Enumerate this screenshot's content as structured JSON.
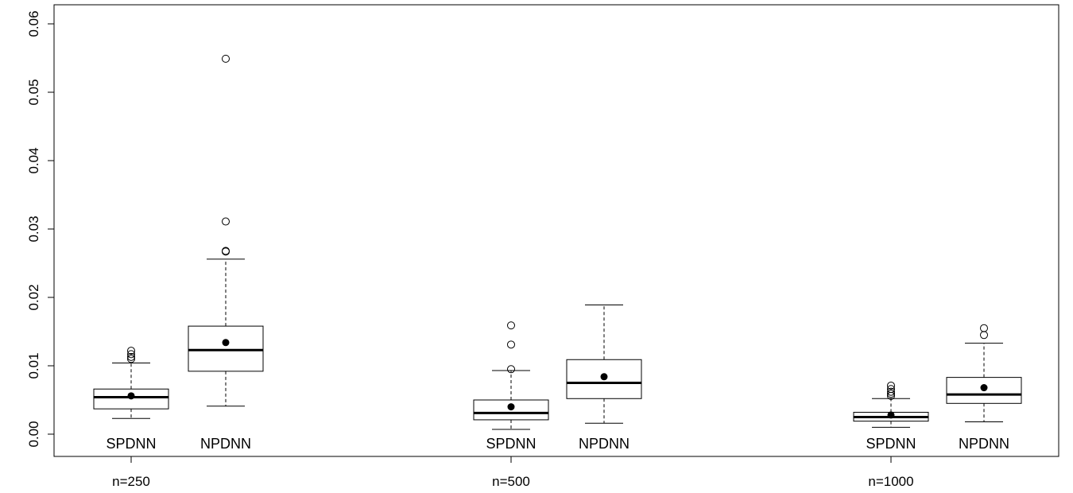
{
  "chart_data": {
    "type": "boxplot",
    "title": "",
    "xlabel": "",
    "ylabel": "",
    "ylim": [
      -0.003,
      0.062
    ],
    "yticks": [
      0.0,
      0.01,
      0.02,
      0.03,
      0.04,
      0.05,
      0.06
    ],
    "ytick_labels": [
      "0.00",
      "0.01",
      "0.02",
      "0.03",
      "0.04",
      "0.05",
      "0.06"
    ],
    "groups": [
      "n=250",
      "n=500",
      "n=1000"
    ],
    "methods": [
      "SPDNN",
      "NPDNN"
    ],
    "grid": false,
    "legend": "none",
    "mean_marker": "filled-circle",
    "outlier_marker": "open-circle",
    "boxes": [
      {
        "group": "n=250",
        "method": "SPDNN",
        "whisker_low": 0.0023,
        "q1": 0.0037,
        "median": 0.0054,
        "q3": 0.0066,
        "whisker_high": 0.0104,
        "mean": 0.0056,
        "outliers": [
          0.011,
          0.0113,
          0.0117,
          0.0122
        ]
      },
      {
        "group": "n=250",
        "method": "NPDNN",
        "whisker_low": 0.0041,
        "q1": 0.0092,
        "median": 0.0123,
        "q3": 0.0158,
        "whisker_high": 0.0256,
        "mean": 0.0134,
        "outliers": [
          0.0267,
          0.0268,
          0.0311,
          0.0549
        ]
      },
      {
        "group": "n=500",
        "method": "SPDNN",
        "whisker_low": 0.0007,
        "q1": 0.0021,
        "median": 0.0031,
        "q3": 0.005,
        "whisker_high": 0.0093,
        "mean": 0.004,
        "outliers": [
          0.0095,
          0.0131,
          0.0159
        ]
      },
      {
        "group": "n=500",
        "method": "NPDNN",
        "whisker_low": 0.0016,
        "q1": 0.0052,
        "median": 0.0075,
        "q3": 0.0109,
        "whisker_high": 0.0189,
        "mean": 0.0084,
        "outliers": []
      },
      {
        "group": "n=1000",
        "method": "SPDNN",
        "whisker_low": 0.001,
        "q1": 0.0019,
        "median": 0.0025,
        "q3": 0.0032,
        "whisker_high": 0.0052,
        "mean": 0.0028,
        "outliers": [
          0.0056,
          0.0059,
          0.0062,
          0.0066,
          0.0071
        ]
      },
      {
        "group": "n=1000",
        "method": "NPDNN",
        "whisker_low": 0.0018,
        "q1": 0.0045,
        "median": 0.0058,
        "q3": 0.0083,
        "whisker_high": 0.0133,
        "mean": 0.0068,
        "outliers": [
          0.0145,
          0.0155
        ]
      }
    ]
  }
}
